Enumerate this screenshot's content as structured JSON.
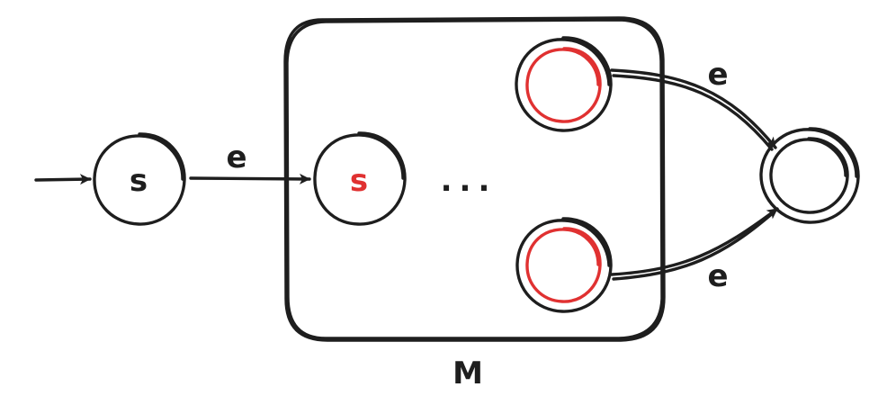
{
  "diagram": {
    "start_state_label": "s",
    "inner_start_label": "s",
    "ellipsis": "...",
    "edge_labels": {
      "start_to_inner": "e",
      "top_accept_to_final": "e",
      "bottom_accept_to_final": "e"
    },
    "machine_label": "M"
  },
  "colors": {
    "ink": "#1e1e1e",
    "highlight": "#e03131"
  }
}
